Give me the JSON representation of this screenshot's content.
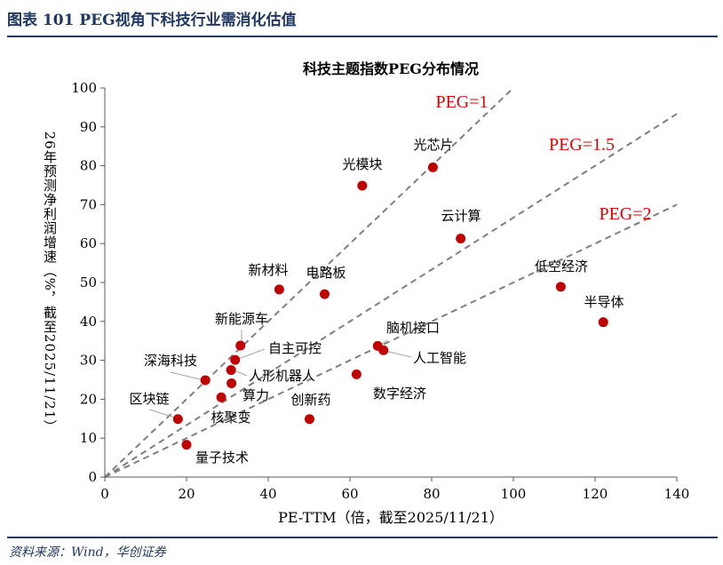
{
  "header": {
    "title": "图表 101   PEG视角下科技行业需消化估值"
  },
  "footer": {
    "source": "资料来源：Wind，华创证券"
  },
  "chart_data": {
    "type": "scatter",
    "title": "科技主题指数PEG分布情况",
    "xlabel": "PE-TTM（倍，截至2025/11/21）",
    "ylabel": "26年预测净利润增速（%，截至2025/11/21）",
    "xlim": [
      0,
      140
    ],
    "ylim": [
      0,
      100
    ],
    "xticks": [
      0,
      20,
      40,
      60,
      80,
      100,
      120,
      140
    ],
    "yticks": [
      0,
      10,
      20,
      30,
      40,
      50,
      60,
      70,
      80,
      90,
      100
    ],
    "grid": false,
    "marker_color": "#c00000",
    "reference_lines": [
      {
        "label": "PEG=1",
        "peg": 1
      },
      {
        "label": "PEG=1.5",
        "peg": 1.5
      },
      {
        "label": "PEG=2",
        "peg": 2
      }
    ],
    "points": [
      {
        "label": "光芯片",
        "x": 80.3,
        "y": 79.6
      },
      {
        "label": "光模块",
        "x": 63.0,
        "y": 74.9
      },
      {
        "label": "云计算",
        "x": 87.1,
        "y": 61.3
      },
      {
        "label": "低空经济",
        "x": 111.6,
        "y": 48.9
      },
      {
        "label": "半导体",
        "x": 122.0,
        "y": 39.8
      },
      {
        "label": "新材料",
        "x": 42.7,
        "y": 48.2
      },
      {
        "label": "电路板",
        "x": 53.8,
        "y": 47.0
      },
      {
        "label": "新能源车",
        "x": 33.2,
        "y": 33.8
      },
      {
        "label": "自主可控",
        "x": 31.9,
        "y": 30.1
      },
      {
        "label": "深海科技",
        "x": 24.6,
        "y": 24.9
      },
      {
        "label": "人形机器人",
        "x": 30.9,
        "y": 27.5
      },
      {
        "label": "算力",
        "x": 31.0,
        "y": 24.1
      },
      {
        "label": "核聚变",
        "x": 28.5,
        "y": 20.5
      },
      {
        "label": "区块链",
        "x": 17.9,
        "y": 14.9
      },
      {
        "label": "量子技术",
        "x": 20.0,
        "y": 8.3
      },
      {
        "label": "创新药",
        "x": 50.1,
        "y": 14.9
      },
      {
        "label": "脑机接口",
        "x": 66.8,
        "y": 33.7
      },
      {
        "label": "人工智能",
        "x": 68.2,
        "y": 32.6
      },
      {
        "label": "数字经济",
        "x": 61.6,
        "y": 26.4
      }
    ]
  }
}
